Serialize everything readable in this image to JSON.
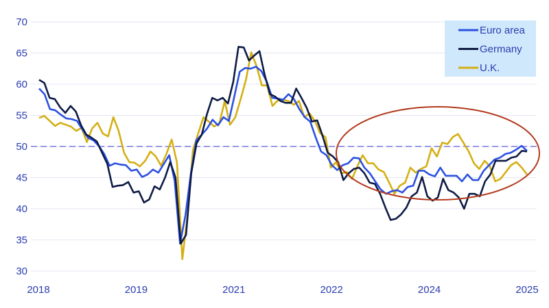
{
  "chart_data": {
    "type": "line",
    "title": "",
    "xlabel": "",
    "ylabel": "",
    "x_tick_labels": [
      "2018",
      "2019",
      "2021",
      "2022",
      "2024",
      "2025"
    ],
    "y_ticks": [
      30,
      35,
      40,
      45,
      50,
      55,
      60,
      65,
      70
    ],
    "ylim": [
      30,
      70
    ],
    "grid": "horizontal",
    "reference_line": {
      "value": 50,
      "style": "dashed",
      "color": "#9a9ae8"
    },
    "legend_position": "top-right",
    "legend_background": "#cfe8fb",
    "annotation": {
      "shape": "ellipse",
      "color": "#b23a1c"
    },
    "series": [
      {
        "name": "Euro area",
        "color": "#2b50e0",
        "values": [
          59.3,
          58.4,
          56.0,
          55.8,
          55.1,
          54.5,
          54.4,
          54.1,
          52.7,
          51.4,
          51.0,
          50.1,
          48.8,
          46.9,
          47.3,
          47.1,
          47.0,
          46.1,
          46.3,
          45.1,
          45.5,
          46.3,
          45.8,
          47.2,
          48.6,
          44.5,
          34.4,
          39.0,
          45.7,
          51.0,
          51.9,
          52.9,
          54.3,
          53.4,
          54.7,
          54.1,
          58.0,
          62.0,
          62.6,
          62.5,
          62.8,
          62.1,
          60.4,
          57.8,
          57.7,
          57.5,
          58.4,
          57.6,
          56.0,
          54.7,
          54.0,
          51.5,
          49.2,
          48.6,
          47.0,
          46.2,
          47.0,
          47.3,
          48.2,
          48.1,
          46.6,
          45.7,
          44.4,
          43.1,
          42.4,
          42.8,
          43.0,
          42.6,
          43.5,
          43.7,
          46.1,
          46.1,
          45.5,
          45.2,
          46.6,
          45.3,
          45.3,
          45.3,
          44.4,
          45.5,
          44.6,
          44.6,
          46.1,
          47.0,
          47.9,
          48.2,
          48.8,
          49.0,
          49.5,
          50.1,
          49.3
        ]
      },
      {
        "name": "Germany",
        "color": "#0d1a45",
        "values": [
          60.7,
          60.2,
          57.8,
          57.6,
          56.3,
          55.4,
          56.5,
          55.6,
          53.4,
          51.9,
          51.4,
          50.8,
          49.0,
          47.2,
          43.5,
          43.7,
          43.8,
          44.3,
          42.6,
          42.8,
          41.0,
          41.5,
          43.6,
          43.1,
          45.0,
          47.5,
          45.0,
          34.4,
          35.8,
          45.7,
          50.5,
          51.9,
          55.2,
          57.8,
          57.4,
          57.8,
          56.9,
          60.4,
          66.0,
          65.9,
          63.8,
          64.6,
          65.3,
          61.5,
          58.4,
          58.0,
          57.3,
          57.0,
          57.0,
          59.3,
          57.8,
          56.2,
          54.0,
          54.2,
          51.8,
          49.0,
          48.4,
          47.5,
          44.6,
          45.7,
          46.4,
          46.6,
          45.7,
          44.2,
          44.0,
          42.4,
          40.2,
          38.2,
          38.4,
          39.1,
          40.2,
          42.0,
          42.6,
          45.1,
          42.0,
          41.3,
          41.8,
          44.8,
          43.0,
          42.6,
          41.8,
          40.0,
          42.4,
          42.4,
          42.0,
          44.4,
          45.5,
          47.7,
          47.7,
          47.7,
          48.2,
          48.4,
          49.3,
          49.2
        ]
      },
      {
        "name": "U.K.",
        "color": "#d4af12",
        "values": [
          54.6,
          54.9,
          54.1,
          53.3,
          53.8,
          53.5,
          53.2,
          52.5,
          53.0,
          50.7,
          52.9,
          53.8,
          52.1,
          51.6,
          54.7,
          52.5,
          49.0,
          47.5,
          47.4,
          46.8,
          47.7,
          49.2,
          48.4,
          46.9,
          48.8,
          51.1,
          47.4,
          31.9,
          39.1,
          49.4,
          52.1,
          54.7,
          54.0,
          53.2,
          53.8,
          57.3,
          53.5,
          54.7,
          57.6,
          60.7,
          65.1,
          62.9,
          59.8,
          59.8,
          56.5,
          57.4,
          57.5,
          57.3,
          56.7,
          57.3,
          54.7,
          55.3,
          54.1,
          52.1,
          51.5,
          46.6,
          47.5,
          45.7,
          45.9,
          44.8,
          46.8,
          48.6,
          47.3,
          47.3,
          46.3,
          45.9,
          44.2,
          42.4,
          43.7,
          44.2,
          46.6,
          45.8,
          46.4,
          46.8,
          49.7,
          48.4,
          50.6,
          50.4,
          51.5,
          52.0,
          50.6,
          49.2,
          47.3,
          46.4,
          47.7,
          46.8,
          44.4,
          44.8,
          45.9,
          47.0,
          47.5,
          46.6,
          45.5
        ]
      }
    ]
  }
}
